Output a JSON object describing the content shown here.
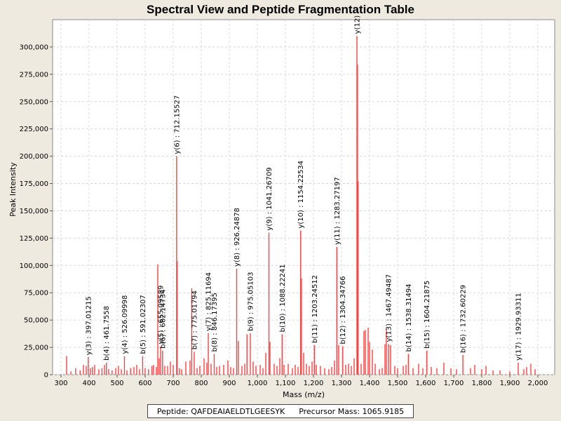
{
  "chart_data": {
    "type": "bar",
    "title": "Spectral View and Peptide Fragmentation Table",
    "xlabel": "Mass (m/z)",
    "ylabel": "Peak Intensity",
    "xlim": [
      270,
      2060
    ],
    "ylim": [
      0,
      325000
    ],
    "xticks": [
      300,
      400,
      500,
      600,
      700,
      800,
      900,
      1000,
      1100,
      1200,
      1300,
      1400,
      1500,
      1600,
      1700,
      1800,
      1900,
      2000
    ],
    "xtick_labels": [
      "300",
      "400",
      "500",
      "600",
      "700",
      "800",
      "900",
      "1,000",
      "1,100",
      "1,200",
      "1,300",
      "1,400",
      "1,500",
      "1,600",
      "1,700",
      "1,800",
      "1,900",
      "2,000"
    ],
    "yticks": [
      0,
      25000,
      50000,
      75000,
      100000,
      125000,
      150000,
      175000,
      200000,
      225000,
      250000,
      275000,
      300000
    ],
    "ytick_labels": [
      "0",
      "25,000",
      "50,000",
      "75,000",
      "100,000",
      "125,000",
      "150,000",
      "175,000",
      "200,000",
      "225,000",
      "250,000",
      "275,000",
      "300,000"
    ],
    "grid": true,
    "peak_color": "#ff4040",
    "peaks": [
      [
        320,
        17000
      ],
      [
        335,
        3000
      ],
      [
        352,
        6000
      ],
      [
        368,
        4000
      ],
      [
        380,
        9000
      ],
      [
        390,
        8000
      ],
      [
        397.01,
        16000
      ],
      [
        405,
        6000
      ],
      [
        412,
        7000
      ],
      [
        420,
        9000
      ],
      [
        435,
        5000
      ],
      [
        446,
        6000
      ],
      [
        455,
        9000
      ],
      [
        461.76,
        11000
      ],
      [
        470,
        5000
      ],
      [
        482,
        4000
      ],
      [
        495,
        6000
      ],
      [
        505,
        8000
      ],
      [
        515,
        5000
      ],
      [
        526.1,
        17000
      ],
      [
        535,
        4000
      ],
      [
        548,
        6000
      ],
      [
        560,
        7000
      ],
      [
        570,
        9000
      ],
      [
        580,
        5000
      ],
      [
        591.02,
        17000
      ],
      [
        600,
        6000
      ],
      [
        612,
        5000
      ],
      [
        624,
        8000
      ],
      [
        630,
        9000
      ],
      [
        640,
        7000
      ],
      [
        645,
        101000
      ],
      [
        650,
        15000
      ],
      [
        655.1,
        26000
      ],
      [
        662,
        22000
      ],
      [
        670,
        8000
      ],
      [
        680,
        8000
      ],
      [
        690,
        12000
      ],
      [
        700,
        9000
      ],
      [
        712.16,
        200000
      ],
      [
        714,
        104000
      ],
      [
        722,
        6000
      ],
      [
        730,
        5000
      ],
      [
        745,
        12000
      ],
      [
        760,
        13000
      ],
      [
        766,
        79000
      ],
      [
        775.02,
        21000
      ],
      [
        785,
        6000
      ],
      [
        795,
        8000
      ],
      [
        810,
        15000
      ],
      [
        820,
        11000
      ],
      [
        825.12,
        38000
      ],
      [
        835,
        10000
      ],
      [
        846.17,
        19000
      ],
      [
        855,
        7000
      ],
      [
        865,
        8000
      ],
      [
        880,
        9000
      ],
      [
        895,
        13000
      ],
      [
        905,
        7000
      ],
      [
        915,
        6000
      ],
      [
        926.25,
        97000
      ],
      [
        932,
        31000
      ],
      [
        945,
        8000
      ],
      [
        955,
        10000
      ],
      [
        963,
        37000
      ],
      [
        975.05,
        38000
      ],
      [
        985,
        12000
      ],
      [
        995,
        8000
      ],
      [
        1010,
        9000
      ],
      [
        1020,
        6000
      ],
      [
        1030,
        20000
      ],
      [
        1041.27,
        130000
      ],
      [
        1045,
        30000
      ],
      [
        1060,
        10000
      ],
      [
        1070,
        8000
      ],
      [
        1080,
        15000
      ],
      [
        1088.22,
        37000
      ],
      [
        1095,
        9000
      ],
      [
        1110,
        10000
      ],
      [
        1125,
        6000
      ],
      [
        1135,
        9000
      ],
      [
        1145,
        7000
      ],
      [
        1154.23,
        132000
      ],
      [
        1157,
        88000
      ],
      [
        1165,
        20000
      ],
      [
        1175,
        10000
      ],
      [
        1185,
        8000
      ],
      [
        1195,
        12000
      ],
      [
        1203.25,
        27000
      ],
      [
        1210,
        9000
      ],
      [
        1225,
        8000
      ],
      [
        1240,
        6000
      ],
      [
        1255,
        5000
      ],
      [
        1265,
        7000
      ],
      [
        1275,
        13000
      ],
      [
        1283.27,
        117000
      ],
      [
        1290,
        27000
      ],
      [
        1304.35,
        26000
      ],
      [
        1315,
        9000
      ],
      [
        1325,
        10000
      ],
      [
        1335,
        8000
      ],
      [
        1345,
        15000
      ],
      [
        1355,
        310000
      ],
      [
        1357,
        284000
      ],
      [
        1359,
        177000
      ],
      [
        1370,
        10000
      ],
      [
        1380,
        40000
      ],
      [
        1385,
        41000
      ],
      [
        1395,
        43000
      ],
      [
        1400,
        30000
      ],
      [
        1410,
        23000
      ],
      [
        1420,
        10000
      ],
      [
        1435,
        5000
      ],
      [
        1445,
        6000
      ],
      [
        1455,
        28000
      ],
      [
        1460,
        42000
      ],
      [
        1467.49,
        28000
      ],
      [
        1475,
        27000
      ],
      [
        1490,
        8000
      ],
      [
        1500,
        6000
      ],
      [
        1520,
        8000
      ],
      [
        1530,
        9000
      ],
      [
        1538.31,
        19000
      ],
      [
        1555,
        6000
      ],
      [
        1575,
        10000
      ],
      [
        1590,
        6000
      ],
      [
        1604.22,
        22000
      ],
      [
        1620,
        7000
      ],
      [
        1640,
        6000
      ],
      [
        1665,
        11000
      ],
      [
        1690,
        6000
      ],
      [
        1710,
        5000
      ],
      [
        1732.6,
        18000
      ],
      [
        1760,
        6000
      ],
      [
        1775,
        9000
      ],
      [
        1800,
        5000
      ],
      [
        1815,
        8000
      ],
      [
        1840,
        4000
      ],
      [
        1865,
        4000
      ],
      [
        1900,
        3000
      ],
      [
        1929.93,
        11000
      ],
      [
        1950,
        5000
      ],
      [
        1960,
        7000
      ],
      [
        1975,
        10000
      ],
      [
        1990,
        5000
      ]
    ],
    "annotations": [
      {
        "mz": 397.01215,
        "intensity": 16000,
        "label": "y(3) : 397.01215"
      },
      {
        "mz": 461.7558,
        "intensity": 11000,
        "label": "b(4) : 461.7558"
      },
      {
        "mz": 526.09998,
        "intensity": 17000,
        "label": "y(4) : 526.09998"
      },
      {
        "mz": 591.02307,
        "intensity": 17000,
        "label": "b(5) : 591.02307"
      },
      {
        "mz": 655.09589,
        "intensity": 26000,
        "label": "y(5) : 655.09589"
      },
      {
        "mz": 662.14734,
        "intensity": 22000,
        "label": "b(6) : 662.14734"
      },
      {
        "mz": 712.15527,
        "intensity": 200000,
        "label": "y(6) : 712.15527"
      },
      {
        "mz": 775.01794,
        "intensity": 21000,
        "label": "b(7) : 775.01794"
      },
      {
        "mz": 825.11694,
        "intensity": 38000,
        "label": "y(7) : 825.11694"
      },
      {
        "mz": 846.17395,
        "intensity": 19000,
        "label": "b(8) : 846.17395"
      },
      {
        "mz": 926.24878,
        "intensity": 97000,
        "label": "y(8) : 926.24878"
      },
      {
        "mz": 975.05103,
        "intensity": 38000,
        "label": "b(9) : 975.05103"
      },
      {
        "mz": 1041.26709,
        "intensity": 130000,
        "label": "y(9) : 1041.26709"
      },
      {
        "mz": 1088.22241,
        "intensity": 37000,
        "label": "b(10) : 1088.22241"
      },
      {
        "mz": 1154.22534,
        "intensity": 132000,
        "label": "y(10) : 1154.22534"
      },
      {
        "mz": 1203.24512,
        "intensity": 27000,
        "label": "b(11) : 1203.24512"
      },
      {
        "mz": 1283.27197,
        "intensity": 117000,
        "label": "y(11) : 1283.27197"
      },
      {
        "mz": 1304.34766,
        "intensity": 26000,
        "label": "b(12) : 1304.34766"
      },
      {
        "mz": 1355,
        "intensity": 310000,
        "label": "y(12)"
      },
      {
        "mz": 1467.49487,
        "intensity": 28000,
        "label": "y(13) : 1467.49487"
      },
      {
        "mz": 1538.31494,
        "intensity": 19000,
        "label": "b(14) : 1538.31494"
      },
      {
        "mz": 1604.21875,
        "intensity": 22000,
        "label": "b(15) : 1604.21875"
      },
      {
        "mz": 1732.60229,
        "intensity": 18000,
        "label": "b(16) : 1732.60229"
      },
      {
        "mz": 1929.93311,
        "intensity": 11000,
        "label": "y(17) : 1929.93311"
      }
    ]
  },
  "legend": {
    "peptide": "Peptide: QAFDEAIAELDTLGEESYK",
    "precursor": "Precursor Mass: 1065.9185"
  }
}
